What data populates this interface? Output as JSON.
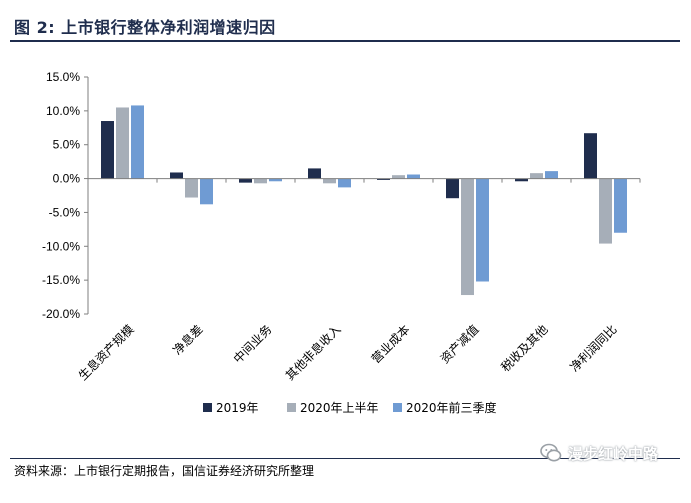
{
  "figure": {
    "title": "图 2:  上市银行整体净利润增速归因",
    "source": "资料来源：上市银行定期报告，国信证券经济研究所整理",
    "watermark": "漫步红岭中路",
    "watermark_icon": "wechat-icon"
  },
  "chart_data": {
    "type": "bar",
    "title": "上市银行整体净利润增速归因",
    "xlabel": "",
    "ylabel": "",
    "ylim": [
      -20,
      15
    ],
    "yticks": [
      15,
      10,
      5,
      0,
      -5,
      -10,
      -15,
      -20
    ],
    "ytick_labels": [
      "15.0%",
      "10.0%",
      "5.0%",
      "0.0%",
      "-5.0%",
      "-10.0%",
      "-15.0%",
      "-20.0%"
    ],
    "grid": false,
    "legend_position": "bottom",
    "categories": [
      "生息资产规模",
      "净息差",
      "中间业务",
      "其他非息收入",
      "营业成本",
      "资产减值",
      "税收及其他",
      "净利润同比"
    ],
    "series": [
      {
        "name": "2019年",
        "color": "#1f2d4d",
        "values": [
          8.5,
          0.9,
          -0.6,
          1.5,
          -0.2,
          -2.9,
          -0.4,
          6.7
        ]
      },
      {
        "name": "2020年上半年",
        "color": "#a6aeb8",
        "values": [
          10.5,
          -2.8,
          -0.7,
          -0.7,
          0.5,
          -17.2,
          0.8,
          -9.6
        ]
      },
      {
        "name": "2020年前三季度",
        "color": "#6f9bd3",
        "values": [
          10.8,
          -3.8,
          -0.4,
          -1.3,
          0.6,
          -15.2,
          1.1,
          -8.0
        ]
      }
    ]
  }
}
